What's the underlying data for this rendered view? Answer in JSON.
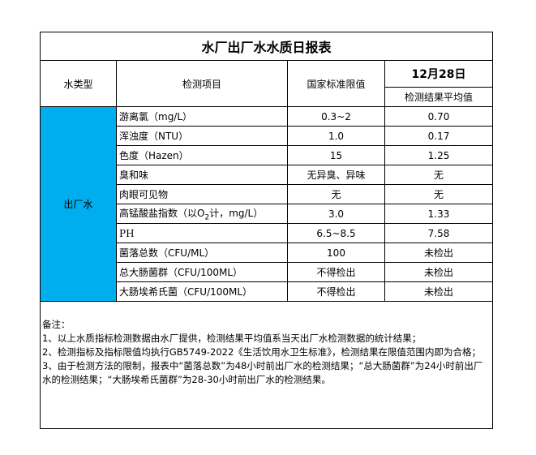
{
  "title": "水厂出厂水水质日报表",
  "headers": {
    "water_type": "水类型",
    "item": "检测项目",
    "standard": "国家标准限值",
    "date": "12月28日",
    "average": "检测结果平均值"
  },
  "water_type": "出厂水",
  "colors": {
    "water_type_bg": "#00AEEF"
  },
  "rows": [
    {
      "item": "游离氯（mg/L）",
      "standard": "0.3~2",
      "value": "0.70"
    },
    {
      "item": "浑浊度（NTU）",
      "standard": "1.0",
      "value": "0.17"
    },
    {
      "item": "色度（Hazen）",
      "standard": "15",
      "value": "1.25"
    },
    {
      "item": "臭和味",
      "standard": "无异臭、异味",
      "value": "无"
    },
    {
      "item": "肉眼可见物",
      "standard": "无",
      "value": "无"
    },
    {
      "item_pre": "高锰酸盐指数（以O",
      "item_sub": "2",
      "item_post": "计，mg/L）",
      "standard": "3.0",
      "value": "1.33"
    },
    {
      "item": "PH",
      "standard": "6.5~8.5",
      "value": "7.58"
    },
    {
      "item": "菌落总数（CFU/ML）",
      "standard": "100",
      "value": "未检出"
    },
    {
      "item": "总大肠菌群（CFU/100ML）",
      "standard": "不得检出",
      "value": "未检出"
    },
    {
      "item": "大肠埃希氏菌（CFU/100ML）",
      "standard": "不得检出",
      "value": "未检出"
    }
  ],
  "notes": [
    "备注：",
    "1、以上水质指标检测数据由水厂提供，检测结果平均值系当天出厂水检测数据的统计结果；",
    "2、检测指标及指标限值均执行GB5749-2022《生活饮用水卫生标准》，检测结果在限值范围内即为合格；",
    "3、由于检测方法的限制，报表中“菌落总数”为48小时前出厂水的检测结果；“总大肠菌群”为24小时前出厂水的检测结果；“大肠埃希氏菌群”为28-30小时前出厂水的检测结果。"
  ]
}
